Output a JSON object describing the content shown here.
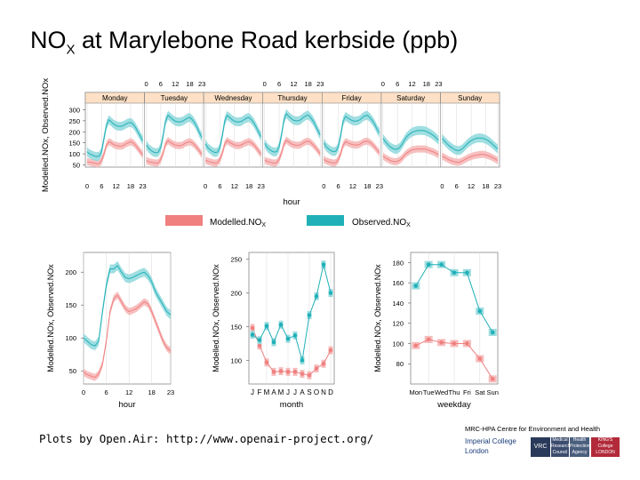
{
  "slide": {
    "title_main": "NO",
    "title_sub": "X",
    "title_rest": " at Marylebone Road kerbside (ppb)",
    "footer": "Plots by Open.Air: http://www.openair-project.org/",
    "institution_caption": "MRC-HPA Centre for Environment and Health",
    "imperial_line1": "Imperial College",
    "imperial_line2": "London",
    "logo_labels": [
      "VRC",
      "Medical Research Council",
      "Health Protection Agency",
      "KING'S College LONDON"
    ]
  },
  "colors": {
    "modelled": "#f08080",
    "modelled_band": "#f6b5b5",
    "observed": "#20b0b8",
    "observed_band": "#8fd8dc",
    "strip": "#fde0c5",
    "grid": "#d9d9d9"
  },
  "chart_data": [
    {
      "type": "line",
      "id": "weekday_hour",
      "panels": [
        "Monday",
        "Tuesday",
        "Wednesday",
        "Thursday",
        "Friday",
        "Saturday",
        "Sunday"
      ],
      "xlabel": "hour",
      "ylabel": "Modelled.NOx, Observed.NOx",
      "x_ticks": [
        0,
        6,
        12,
        18,
        23
      ],
      "ylim": [
        40,
        330
      ],
      "y_ticks": [
        50,
        100,
        150,
        200,
        250,
        300
      ],
      "series": [
        {
          "name": "Modelled.NOx",
          "profiles": [
            [
              65,
              62,
              60,
              58,
              55,
              56,
              70,
              100,
              140,
              155,
              150,
              142,
              138,
              135,
              135,
              138,
              145,
              150,
              155,
              150,
              140,
              125,
              110,
              95
            ],
            [
              70,
              65,
              62,
              60,
              58,
              60,
              75,
              105,
              145,
              160,
              152,
              145,
              140,
              138,
              138,
              140,
              148,
              152,
              155,
              150,
              140,
              128,
              112,
              98
            ],
            [
              72,
              66,
              63,
              60,
              58,
              60,
              75,
              105,
              145,
              160,
              152,
              146,
              140,
              138,
              138,
              141,
              148,
              152,
              156,
              150,
              141,
              128,
              112,
              98
            ],
            [
              72,
              66,
              63,
              60,
              58,
              60,
              75,
              105,
              145,
              162,
              154,
              146,
              141,
              139,
              139,
              142,
              150,
              155,
              158,
              152,
              142,
              130,
              115,
              100
            ],
            [
              75,
              68,
              64,
              61,
              58,
              60,
              74,
              102,
              140,
              155,
              150,
              145,
              142,
              140,
              141,
              144,
              152,
              156,
              158,
              152,
              144,
              132,
              118,
              105
            ],
            [
              90,
              82,
              76,
              70,
              66,
              64,
              66,
              72,
              82,
              95,
              105,
              112,
              118,
              120,
              122,
              122,
              122,
              122,
              120,
              116,
              112,
              108,
              102,
              96
            ],
            [
              90,
              84,
              78,
              72,
              68,
              64,
              62,
              62,
              66,
              72,
              78,
              84,
              88,
              92,
              94,
              96,
              98,
              98,
              96,
              92,
              88,
              82,
              76,
              70
            ]
          ]
        },
        {
          "name": "Observed.NOx",
          "profiles": [
            [
              110,
              100,
              95,
              90,
              88,
              90,
              110,
              170,
              230,
              255,
              245,
              235,
              228,
              225,
              225,
              228,
              235,
              240,
              242,
              235,
              220,
              200,
              180,
              160
            ],
            [
              140,
              125,
              115,
              108,
              105,
              108,
              130,
              185,
              250,
              275,
              265,
              255,
              248,
              245,
              245,
              248,
              255,
              262,
              265,
              255,
              240,
              220,
              195,
              175
            ],
            [
              145,
              128,
              118,
              110,
              106,
              108,
              130,
              185,
              250,
              275,
              265,
              255,
              248,
              245,
              245,
              248,
              256,
              262,
              265,
              255,
              240,
              220,
              198,
              178
            ],
            [
              148,
              130,
              120,
              112,
              108,
              110,
              132,
              188,
              255,
              282,
              270,
              260,
              252,
              250,
              250,
              255,
              265,
              272,
              276,
              265,
              250,
              230,
              205,
              185
            ],
            [
              150,
              132,
              122,
              114,
              110,
              112,
              132,
              185,
              248,
              270,
              262,
              255,
              250,
              248,
              250,
              255,
              265,
              272,
              275,
              265,
              252,
              235,
              212,
              195
            ],
            [
              170,
              155,
              142,
              132,
              125,
              120,
              122,
              130,
              145,
              165,
              180,
              190,
              198,
              202,
              205,
              206,
              206,
              205,
              202,
              196,
              190,
              182,
              172,
              162
            ],
            [
              170,
              158,
              146,
              136,
              128,
              120,
              116,
              115,
              120,
              130,
              142,
              152,
              160,
              166,
              170,
              172,
              172,
              170,
              166,
              160,
              152,
              142,
              132,
              122
            ]
          ]
        }
      ]
    },
    {
      "type": "line",
      "id": "hour",
      "xlabel": "hour",
      "ylabel": "Modelled.NOx, Observed.NOx",
      "x_ticks": [
        0,
        6,
        12,
        18,
        23
      ],
      "ylim": [
        30,
        230
      ],
      "y_ticks": [
        50,
        100,
        150,
        200
      ],
      "series": [
        {
          "name": "Modelled.NOx",
          "values": [
            48,
            44,
            42,
            40,
            45,
            60,
            95,
            140,
            160,
            165,
            155,
            145,
            140,
            142,
            145,
            150,
            155,
            152,
            140,
            125,
            110,
            95,
            85,
            80
          ]
        },
        {
          "name": "Observed.NOx",
          "values": [
            100,
            95,
            90,
            88,
            95,
            140,
            180,
            205,
            205,
            210,
            200,
            192,
            190,
            192,
            195,
            198,
            200,
            195,
            185,
            170,
            160,
            150,
            140,
            135
          ]
        }
      ]
    },
    {
      "type": "line",
      "id": "month",
      "xlabel": "month",
      "ylabel": "Modelled.NOx, Observed.NOx",
      "categories": [
        "J",
        "F",
        "M",
        "A",
        "M",
        "J",
        "J",
        "A",
        "S",
        "O",
        "N",
        "D"
      ],
      "ylim": [
        65,
        260
      ],
      "y_ticks": [
        100,
        150,
        200,
        250
      ],
      "series": [
        {
          "name": "Modelled.NOx",
          "values": [
            148,
            122,
            97,
            83,
            84,
            83,
            83,
            80,
            78,
            88,
            95,
            115
          ]
        },
        {
          "name": "Observed.NOx",
          "values": [
            138,
            130,
            151,
            127,
            153,
            132,
            137,
            100,
            167,
            195,
            242,
            200
          ]
        }
      ]
    },
    {
      "type": "line",
      "id": "weekday",
      "xlabel": "weekday",
      "ylabel": "Modelled.NOx, Observed.NOx",
      "categories": [
        "Mon",
        "Tue",
        "Wed",
        "Thu",
        "Fri",
        "Sat",
        "Sun"
      ],
      "ylim": [
        60,
        190
      ],
      "y_ticks": [
        80,
        100,
        120,
        140,
        160,
        180
      ],
      "series": [
        {
          "name": "Modelled.NOx",
          "values": [
            98,
            104,
            101,
            100,
            100,
            85,
            65
          ]
        },
        {
          "name": "Observed.NOx",
          "values": [
            157,
            178,
            178,
            170,
            170,
            132,
            111
          ]
        }
      ]
    }
  ],
  "legend": {
    "modelled_label": "Modelled.NO",
    "observed_label": "Observed.NO",
    "sub": "X"
  }
}
